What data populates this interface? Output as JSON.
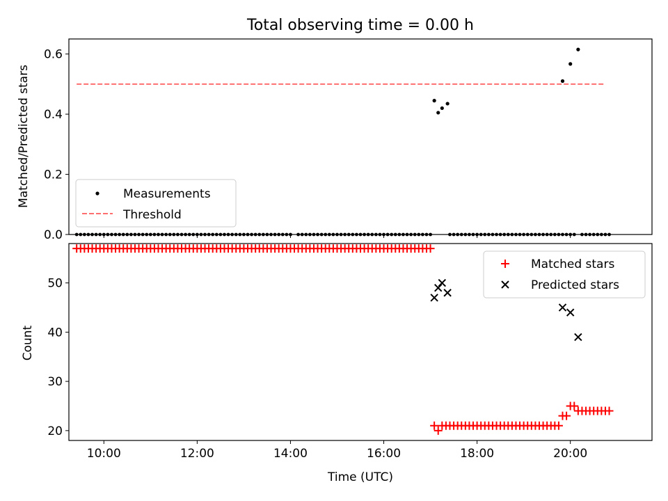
{
  "chart_data": [
    {
      "type": "scatter",
      "title": "Total observing time = 0.00 h",
      "xlabel": "",
      "ylabel": "Matched/Predicted stars",
      "xlim": [
        "09:15",
        "21:45"
      ],
      "ylim": [
        0,
        0.65
      ],
      "yticks": [
        "0.0",
        "0.2",
        "0.4",
        "0.6"
      ],
      "yticks_values": [
        0,
        0.2,
        0.4,
        0.6
      ],
      "grid": false,
      "legend": {
        "position": "lower-left",
        "entries": [
          "Measurements",
          "Threshold"
        ]
      },
      "series": [
        {
          "name": "Measurements",
          "marker": "dot",
          "color": "#000000",
          "points": [
            [
              "17:05",
              0.445
            ],
            [
              "17:10",
              0.405
            ],
            [
              "17:15",
              0.42
            ],
            [
              "17:22",
              0.435
            ],
            [
              "19:50",
              0.51
            ],
            [
              "20:00",
              0.567
            ],
            [
              "20:10",
              0.615
            ]
          ],
          "zero_runs": [
            [
              "09:25",
              "12:35"
            ],
            [
              "12:40",
              "12:55"
            ],
            [
              "13:00",
              "14:00"
            ],
            [
              "14:10",
              "17:00"
            ],
            [
              "17:25",
              "19:55"
            ],
            [
              "20:00",
              "20:05"
            ],
            [
              "20:15",
              "20:50"
            ]
          ]
        },
        {
          "name": "Threshold",
          "style": "dashed",
          "color": "#ff6e6e",
          "x": [
            "09:25",
            "20:45"
          ],
          "y": [
            0.5,
            0.5
          ]
        }
      ]
    },
    {
      "type": "scatter",
      "title": "",
      "xlabel": "Time (UTC)",
      "ylabel": "Count",
      "xlim": [
        "09:15",
        "21:45"
      ],
      "ylim": [
        18,
        58
      ],
      "yticks": [
        "20",
        "30",
        "40",
        "50"
      ],
      "yticks_values": [
        20,
        30,
        40,
        50
      ],
      "xticks": [
        "10:00",
        "12:00",
        "14:00",
        "16:00",
        "18:00",
        "20:00"
      ],
      "grid": false,
      "legend": {
        "position": "upper-right",
        "entries": [
          "Matched stars",
          "Predicted stars"
        ]
      },
      "series": [
        {
          "name": "Matched stars",
          "marker": "plus",
          "color": "#ff0000",
          "runs": [
            {
              "from": "09:25",
              "to": "17:00",
              "y": 57
            },
            {
              "from": "17:05",
              "to": "17:05",
              "y": 21
            },
            {
              "from": "17:10",
              "to": "17:10",
              "y": 20
            },
            {
              "from": "17:15",
              "to": "19:45",
              "y": 21
            },
            {
              "from": "19:50",
              "to": "19:55",
              "y": 23
            },
            {
              "from": "20:00",
              "to": "20:05",
              "y": 25
            },
            {
              "from": "20:10",
              "to": "20:50",
              "y": 24
            }
          ]
        },
        {
          "name": "Predicted stars",
          "marker": "x",
          "color": "#000000",
          "points": [
            [
              "17:05",
              47
            ],
            [
              "17:10",
              49
            ],
            [
              "17:15",
              50
            ],
            [
              "17:22",
              48
            ],
            [
              "19:50",
              45
            ],
            [
              "20:00",
              44
            ],
            [
              "20:10",
              39
            ]
          ]
        }
      ]
    }
  ]
}
